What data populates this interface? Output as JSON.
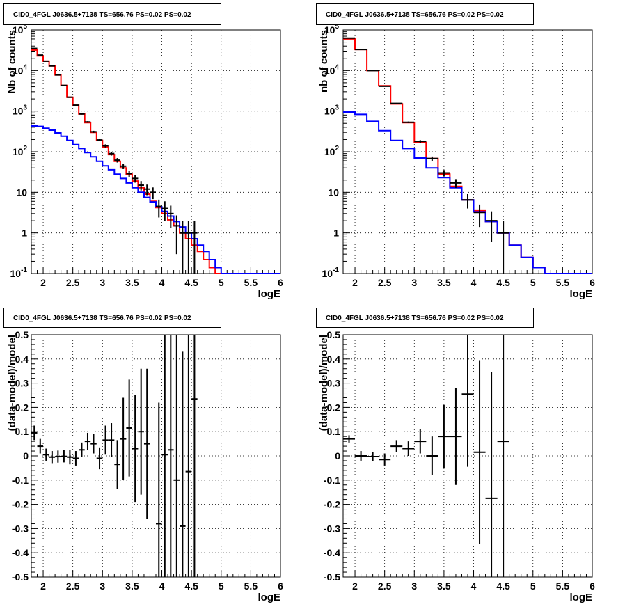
{
  "chart_data": [
    {
      "type": "line",
      "title": "CID0_4FGL J0636.5+7138 TS=656.76 PS=0.02 PS=0.02",
      "xlabel": "logE",
      "ylabel": "Nb of counts",
      "xlim": [
        1.8,
        6.0
      ],
      "ylim": [
        0.1,
        100000
      ],
      "yscale": "log",
      "grid": true,
      "x_ticks": [
        "2",
        "2.5",
        "3",
        "3.5",
        "4",
        "4.5",
        "5",
        "5.5",
        "6"
      ],
      "y_ticks": [
        "10^-1",
        "1",
        "10",
        "10^2",
        "10^3",
        "10^4",
        "10^5"
      ],
      "bin_edges_start": 1.8,
      "bin_width": 0.1,
      "series": [
        {
          "kind": "step",
          "color": "#ff0000",
          "values": [
            32000,
            23000,
            17000,
            13000,
            7800,
            4300,
            2200,
            1400,
            850,
            520,
            300,
            190,
            130,
            85,
            58,
            40,
            28,
            19,
            13,
            9,
            6,
            4.2,
            3.0,
            2.1,
            1.5,
            1.0,
            0.72,
            0.5,
            0.35,
            0.22,
            0.14,
            0.1,
            0.1,
            0.1,
            0.1,
            0.1,
            0.1,
            0.1,
            0.1,
            0.1,
            0.1,
            0.1
          ]
        },
        {
          "kind": "step",
          "color": "#0000ff",
          "values": [
            430,
            420,
            380,
            340,
            290,
            240,
            190,
            150,
            120,
            95,
            75,
            58,
            45,
            36,
            28,
            22,
            17,
            13,
            10,
            7.5,
            5.8,
            4.4,
            3.4,
            2.6,
            1.9,
            1.4,
            1.0,
            0.72,
            0.5,
            0.35,
            0.22,
            0.14,
            0.1,
            0.1,
            0.1,
            0.1,
            0.1,
            0.1,
            0.1,
            0.1,
            0.1,
            0.1
          ]
        },
        {
          "kind": "points",
          "color": "#000000",
          "x": [
            1.85,
            1.95,
            2.05,
            2.15,
            2.25,
            2.35,
            2.45,
            2.55,
            2.65,
            2.75,
            2.85,
            2.95,
            3.05,
            3.15,
            3.25,
            3.35,
            3.45,
            3.55,
            3.65,
            3.75,
            3.85,
            3.95,
            4.05,
            4.15,
            4.25,
            4.35,
            4.45,
            4.55
          ],
          "y": [
            35000,
            24000,
            17000,
            13000,
            7800,
            4300,
            2200,
            1400,
            850,
            540,
            310,
            195,
            140,
            90,
            62,
            44,
            29,
            22,
            15,
            12,
            10,
            4.5,
            4,
            3,
            1.5,
            1,
            1,
            1
          ],
          "err": [
            190,
            155,
            130,
            114,
            88,
            66,
            47,
            37,
            29,
            23,
            18,
            14,
            12,
            9.5,
            7.9,
            6.6,
            5.4,
            4.7,
            3.9,
            3.5,
            3.2,
            2.1,
            2,
            1.7,
            1.2,
            1,
            1,
            1
          ]
        }
      ]
    },
    {
      "type": "line",
      "title": "CID0_4FGL J0636.5+7138 TS=656.76 PS=0.02 PS=0.02",
      "xlabel": "logE",
      "ylabel": "nb of counts",
      "xlim": [
        1.8,
        6.0
      ],
      "ylim": [
        0.1,
        100000
      ],
      "yscale": "log",
      "grid": true,
      "x_ticks": [
        "2",
        "2.5",
        "3",
        "3.5",
        "4",
        "4.5",
        "5",
        "5.5",
        "6"
      ],
      "y_ticks": [
        "10^-1",
        "1",
        "10",
        "10^2",
        "10^3",
        "10^4",
        "10^5"
      ],
      "bin_edges_start": 1.8,
      "bin_width": 0.2,
      "series": [
        {
          "kind": "step",
          "color": "#ff0000",
          "values": [
            60000,
            33000,
            10000,
            4200,
            1500,
            520,
            170,
            68,
            28,
            14,
            6.5,
            3.5,
            1.9,
            1.0,
            0.5,
            0.25,
            0.14,
            0.1,
            0.1,
            0.1,
            0.1
          ]
        },
        {
          "kind": "step",
          "color": "#0000ff",
          "values": [
            950,
            830,
            560,
            330,
            190,
            120,
            70,
            40,
            23,
            13,
            6.5,
            3.3,
            1.9,
            1.0,
            0.5,
            0.25,
            0.14,
            0.1,
            0.1,
            0.1,
            0.1
          ]
        },
        {
          "kind": "points",
          "color": "#000000",
          "x": [
            1.9,
            2.1,
            2.3,
            2.5,
            2.7,
            2.9,
            3.1,
            3.3,
            3.5,
            3.7,
            3.9,
            4.1,
            4.3,
            4.5
          ],
          "y": [
            63000,
            33000,
            10000,
            4100,
            1550,
            530,
            180,
            68,
            30,
            17,
            6.5,
            3.2,
            2,
            1
          ],
          "err": [
            250,
            182,
            100,
            64,
            39,
            23,
            13,
            8.2,
            5.5,
            4.1,
            2.5,
            1.8,
            1.4,
            1
          ]
        }
      ]
    },
    {
      "type": "scatter",
      "title": "CID0_4FGL J0636.5+7138 TS=656.76 PS=0.02 PS=0.02",
      "xlabel": "logE",
      "ylabel": "(data-model)/model",
      "xlim": [
        1.8,
        6.0
      ],
      "ylim": [
        -0.5,
        0.5
      ],
      "grid": true,
      "x_ticks": [
        "2",
        "2.5",
        "3",
        "3.5",
        "4",
        "4.5",
        "5",
        "5.5",
        "6"
      ],
      "y_ticks": [
        "-0.5",
        "-0.4",
        "-0.3",
        "-0.2",
        "-0.1",
        "0",
        "0.1",
        "0.2",
        "0.3",
        "0.4",
        "0.5"
      ],
      "xerr": 0.05,
      "points": {
        "x": [
          1.85,
          1.95,
          2.05,
          2.15,
          2.25,
          2.35,
          2.45,
          2.55,
          2.65,
          2.75,
          2.85,
          2.95,
          3.05,
          3.15,
          3.25,
          3.35,
          3.45,
          3.55,
          3.65,
          3.75,
          3.95,
          4.05,
          4.15,
          4.25,
          4.35,
          4.45,
          4.55
        ],
        "y": [
          0.095,
          0.04,
          0.005,
          -0.005,
          -0.003,
          -0.002,
          -0.005,
          -0.01,
          0.025,
          0.06,
          0.05,
          -0.01,
          0.065,
          0.065,
          -0.035,
          0.07,
          0.115,
          0.03,
          0.1,
          0.05,
          -0.28,
          0.005,
          0.025,
          -0.1,
          -0.29,
          -0.065,
          0.235
        ],
        "err": [
          0.03,
          0.03,
          0.025,
          0.025,
          0.025,
          0.025,
          0.03,
          0.03,
          0.03,
          0.035,
          0.04,
          0.045,
          0.06,
          0.07,
          0.1,
          0.17,
          0.2,
          0.22,
          0.26,
          0.31,
          0.5,
          0.6,
          0.6,
          0.65,
          0.72,
          0.85,
          0.9
        ]
      }
    },
    {
      "type": "scatter",
      "title": "CID0_4FGL J0636.5+7138 TS=656.76 PS=0.02 PS=0.02",
      "xlabel": "logE",
      "ylabel": "(data-model)/model",
      "xlim": [
        1.8,
        6.0
      ],
      "ylim": [
        -0.5,
        0.5
      ],
      "grid": true,
      "x_ticks": [
        "2",
        "2.5",
        "3",
        "3.5",
        "4",
        "4.5",
        "5",
        "5.5",
        "6"
      ],
      "y_ticks": [
        "-0.5",
        "-0.4",
        "-0.3",
        "-0.2",
        "-0.1",
        "0",
        "0.1",
        "0.2",
        "0.3",
        "0.4",
        "0.5"
      ],
      "xerr": 0.1,
      "points": {
        "x": [
          1.9,
          2.1,
          2.3,
          2.5,
          2.7,
          2.9,
          3.1,
          3.3,
          3.5,
          3.7,
          3.9,
          4.1,
          4.3,
          4.5
        ],
        "y": [
          0.07,
          0.0,
          -0.003,
          -0.015,
          0.04,
          0.03,
          0.06,
          0.0,
          0.08,
          0.08,
          0.255,
          0.015,
          -0.175,
          0.06
        ],
        "err": [
          0.015,
          0.02,
          0.02,
          0.025,
          0.025,
          0.03,
          0.05,
          0.08,
          0.13,
          0.2,
          0.3,
          0.38,
          0.52,
          0.7
        ]
      }
    }
  ]
}
